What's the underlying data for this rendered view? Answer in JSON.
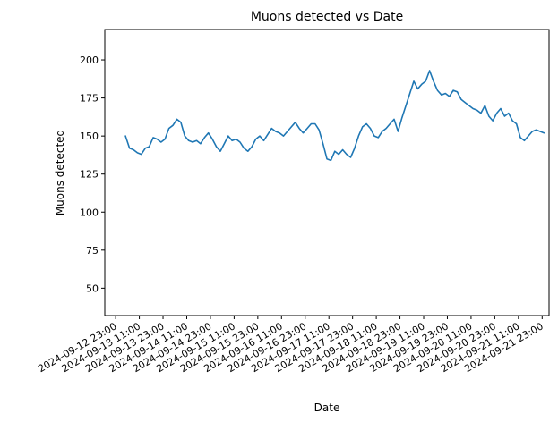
{
  "chart_data": {
    "type": "line",
    "title": "Muons detected vs Date",
    "xlabel": "Date",
    "ylabel": "Muons detected",
    "xlim": [
      "2024-09-12 17:30",
      "2024-09-22 02:30"
    ],
    "ylim": [
      32,
      220
    ],
    "grid": false,
    "line_color": "#1f77b4",
    "x_ticks": [
      "2024-09-12 23:00",
      "2024-09-13 11:00",
      "2024-09-13 23:00",
      "2024-09-14 11:00",
      "2024-09-14 23:00",
      "2024-09-15 11:00",
      "2024-09-15 23:00",
      "2024-09-16 11:00",
      "2024-09-16 23:00",
      "2024-09-17 11:00",
      "2024-09-17 23:00",
      "2024-09-18 11:00",
      "2024-09-18 23:00",
      "2024-09-19 11:00",
      "2024-09-19 23:00",
      "2024-09-20 11:00",
      "2024-09-20 23:00",
      "2024-09-21 11:00",
      "2024-09-21 23:00"
    ],
    "y_ticks": [
      50,
      75,
      100,
      125,
      150,
      175,
      200
    ],
    "series": [
      {
        "x": [
          "2024-09-13 04:00",
          "2024-09-13 06:00",
          "2024-09-13 08:00",
          "2024-09-13 10:00",
          "2024-09-13 12:00",
          "2024-09-13 14:00",
          "2024-09-13 16:00",
          "2024-09-13 18:00",
          "2024-09-13 20:00",
          "2024-09-13 22:00",
          "2024-09-14 00:00",
          "2024-09-14 02:00",
          "2024-09-14 04:00",
          "2024-09-14 06:00",
          "2024-09-14 08:00",
          "2024-09-14 10:00",
          "2024-09-14 12:00",
          "2024-09-14 14:00",
          "2024-09-14 16:00",
          "2024-09-14 18:00",
          "2024-09-14 20:00",
          "2024-09-14 22:00",
          "2024-09-15 00:00",
          "2024-09-15 02:00",
          "2024-09-15 04:00",
          "2024-09-15 06:00",
          "2024-09-15 08:00",
          "2024-09-15 10:00",
          "2024-09-15 12:00",
          "2024-09-15 14:00",
          "2024-09-15 16:00",
          "2024-09-15 18:00",
          "2024-09-15 20:00",
          "2024-09-15 22:00",
          "2024-09-16 00:00",
          "2024-09-16 02:00",
          "2024-09-16 04:00",
          "2024-09-16 06:00",
          "2024-09-16 08:00",
          "2024-09-16 10:00",
          "2024-09-16 12:00",
          "2024-09-16 14:00",
          "2024-09-16 16:00",
          "2024-09-16 18:00",
          "2024-09-16 20:00",
          "2024-09-16 22:00",
          "2024-09-17 00:00",
          "2024-09-17 02:00",
          "2024-09-17 04:00",
          "2024-09-17 06:00",
          "2024-09-17 08:00",
          "2024-09-17 10:00",
          "2024-09-17 12:00",
          "2024-09-17 14:00",
          "2024-09-17 16:00",
          "2024-09-17 18:00",
          "2024-09-17 20:00",
          "2024-09-17 22:00",
          "2024-09-18 00:00",
          "2024-09-18 02:00",
          "2024-09-18 04:00",
          "2024-09-18 06:00",
          "2024-09-18 08:00",
          "2024-09-18 10:00",
          "2024-09-18 12:00",
          "2024-09-18 14:00",
          "2024-09-18 16:00",
          "2024-09-18 18:00",
          "2024-09-18 20:00",
          "2024-09-18 22:00",
          "2024-09-19 00:00",
          "2024-09-19 02:00",
          "2024-09-19 04:00",
          "2024-09-19 06:00",
          "2024-09-19 08:00",
          "2024-09-19 10:00",
          "2024-09-19 12:00",
          "2024-09-19 14:00",
          "2024-09-19 16:00",
          "2024-09-19 18:00",
          "2024-09-19 20:00",
          "2024-09-19 22:00",
          "2024-09-20 00:00",
          "2024-09-20 02:00",
          "2024-09-20 04:00",
          "2024-09-20 06:00",
          "2024-09-20 08:00",
          "2024-09-20 10:00",
          "2024-09-20 12:00",
          "2024-09-20 14:00",
          "2024-09-20 16:00",
          "2024-09-20 18:00",
          "2024-09-20 20:00",
          "2024-09-20 22:00",
          "2024-09-21 00:00",
          "2024-09-21 02:00",
          "2024-09-21 04:00",
          "2024-09-21 06:00",
          "2024-09-21 08:00",
          "2024-09-21 10:00",
          "2024-09-21 12:00",
          "2024-09-21 14:00",
          "2024-09-21 16:00",
          "2024-09-21 18:00",
          "2024-09-21 20:00",
          "2024-09-21 22:00",
          "2024-09-22 00:00"
        ],
        "y": [
          150,
          142,
          141,
          139,
          138,
          142,
          143,
          149,
          148,
          146,
          148,
          155,
          157,
          161,
          159,
          150,
          147,
          146,
          147,
          145,
          149,
          152,
          148,
          143,
          140,
          145,
          150,
          147,
          148,
          146,
          142,
          140,
          143,
          148,
          150,
          147,
          151,
          155,
          153,
          152,
          150,
          153,
          156,
          159,
          155,
          152,
          155,
          158,
          158,
          154,
          145,
          135,
          134,
          140,
          138,
          141,
          138,
          136,
          142,
          150,
          156,
          158,
          155,
          150,
          149,
          153,
          155,
          158,
          161,
          153,
          162,
          170,
          178,
          186,
          181,
          184,
          186,
          193,
          186,
          180,
          177,
          178,
          176,
          180,
          179,
          174,
          172,
          170,
          168,
          167,
          165,
          170,
          163,
          160,
          165,
          168,
          163,
          165,
          160,
          158,
          149,
          147,
          150,
          153,
          154,
          153,
          152
        ]
      }
    ]
  }
}
